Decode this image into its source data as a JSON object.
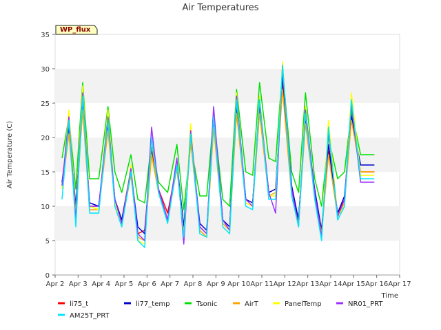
{
  "chart_data": {
    "type": "line",
    "title": "Air Temperatures",
    "xlabel": "Time",
    "ylabel": "Air Temperature (C)",
    "site_badge": "WP_flux",
    "x_ticks": [
      "Apr 2",
      "Apr 3",
      "Apr 4",
      "Apr 5",
      "Apr 6",
      "Apr 7",
      "Apr 8",
      "Apr 9",
      "Apr 10",
      "Apr 11",
      "Apr 12",
      "Apr 13",
      "Apr 14",
      "Apr 15",
      "Apr 16",
      "Apr 17"
    ],
    "xlim": [
      "Apr 2",
      "Apr 17"
    ],
    "ylim": [
      0,
      35
    ],
    "y_ticks": [
      "0",
      "5",
      "10",
      "15",
      "20",
      "25",
      "30",
      "35"
    ],
    "grid": "horizontal bands",
    "legend_position": "bottom",
    "x_unit": "day of April",
    "x": [
      2.3,
      2.6,
      2.9,
      3.2,
      3.5,
      3.9,
      4.3,
      4.6,
      4.9,
      5.3,
      5.6,
      5.9,
      6.2,
      6.5,
      6.9,
      7.3,
      7.6,
      7.9,
      8.3,
      8.6,
      8.9,
      9.3,
      9.6,
      9.9,
      10.3,
      10.6,
      10.9,
      11.3,
      11.6,
      11.9,
      12.3,
      12.6,
      12.9,
      13.3,
      13.6,
      13.9,
      14.3,
      14.6,
      14.9,
      15.3,
      15.6,
      15.9
    ],
    "series": [
      {
        "name": "li75_t",
        "color": "#ff0000",
        "values": [
          13.0,
          22.0,
          9.5,
          25.0,
          10.0,
          10.0,
          22.0,
          11.0,
          8.0,
          15.5,
          6.0,
          6.5,
          18.0,
          12.5,
          9.0,
          16.0,
          6.5,
          20.5,
          7.0,
          6.0,
          22.5,
          8.0,
          7.0,
          24.5,
          11.0,
          10.5,
          24.0,
          12.0,
          12.5,
          28.0,
          12.0,
          8.0,
          23.0,
          12.0,
          6.5,
          18.0,
          9.0,
          11.0,
          23.5,
          15.0,
          15.0,
          15.0
        ]
      },
      {
        "name": "li77_temp",
        "color": "#0000cd",
        "values": [
          13.5,
          21.5,
          10.0,
          25.5,
          10.5,
          10.0,
          22.0,
          11.0,
          8.0,
          15.0,
          7.0,
          6.0,
          19.0,
          12.5,
          8.0,
          16.5,
          7.0,
          20.0,
          7.5,
          6.5,
          22.0,
          8.0,
          7.0,
          25.0,
          11.0,
          10.5,
          25.0,
          12.0,
          12.5,
          29.0,
          13.0,
          8.0,
          23.0,
          12.5,
          6.5,
          19.0,
          9.0,
          11.5,
          23.0,
          16.0,
          16.0,
          16.0
        ]
      },
      {
        "name": "Tsonic",
        "color": "#00e000",
        "values": [
          17.0,
          23.0,
          12.5,
          28.0,
          14.0,
          14.0,
          24.5,
          15.0,
          12.0,
          17.5,
          11.0,
          10.5,
          19.5,
          13.5,
          12.0,
          19.0,
          9.5,
          19.0,
          11.5,
          11.5,
          23.0,
          11.0,
          10.0,
          27.0,
          15.0,
          14.5,
          28.0,
          17.0,
          16.5,
          30.0,
          15.0,
          12.0,
          26.5,
          14.0,
          10.0,
          20.0,
          14.0,
          15.0,
          24.0,
          17.5,
          17.5,
          17.5
        ]
      },
      {
        "name": "AirT",
        "color": "#ffa500",
        "values": [
          12.5,
          20.5,
          9.0,
          24.0,
          9.5,
          9.5,
          21.0,
          10.5,
          7.5,
          14.5,
          5.5,
          5.0,
          17.5,
          12.0,
          8.0,
          15.5,
          6.0,
          19.5,
          6.5,
          5.5,
          21.5,
          7.5,
          6.5,
          23.5,
          10.5,
          10.0,
          23.5,
          11.5,
          12.0,
          27.0,
          11.5,
          7.5,
          22.0,
          11.5,
          6.0,
          17.5,
          8.5,
          10.5,
          22.5,
          15.0,
          15.0,
          15.0
        ]
      },
      {
        "name": "PanelTemp",
        "color": "#ffff00",
        "values": [
          12.5,
          24.0,
          8.5,
          27.5,
          10.0,
          9.5,
          24.0,
          10.5,
          7.0,
          16.0,
          5.0,
          4.5,
          19.5,
          12.0,
          7.5,
          16.5,
          5.5,
          22.0,
          6.0,
          5.5,
          24.0,
          7.0,
          6.0,
          26.5,
          10.5,
          10.0,
          26.0,
          11.5,
          11.5,
          31.0,
          12.0,
          7.0,
          24.5,
          11.0,
          5.5,
          22.5,
          8.5,
          10.0,
          26.5,
          14.5,
          14.5,
          14.5
        ]
      },
      {
        "name": "NR01_PRT",
        "color": "#9b30ff",
        "values": [
          13.0,
          23.0,
          8.0,
          26.5,
          10.0,
          10.0,
          23.0,
          11.0,
          7.5,
          15.5,
          6.0,
          5.0,
          21.5,
          12.5,
          8.0,
          17.0,
          4.5,
          21.0,
          7.0,
          6.0,
          24.5,
          8.0,
          6.5,
          26.0,
          11.0,
          10.0,
          25.5,
          12.0,
          9.0,
          30.5,
          12.5,
          7.0,
          24.0,
          12.0,
          5.5,
          21.0,
          8.5,
          11.0,
          25.0,
          13.5,
          13.5,
          13.5
        ]
      },
      {
        "name": "AM25T_PRT",
        "color": "#00e5ff",
        "values": [
          11.0,
          22.5,
          7.0,
          26.0,
          9.0,
          9.0,
          22.5,
          10.0,
          7.0,
          15.0,
          5.0,
          4.0,
          20.0,
          12.0,
          7.5,
          16.0,
          5.5,
          20.5,
          6.0,
          5.5,
          23.0,
          7.0,
          6.0,
          25.5,
          10.0,
          9.5,
          25.5,
          11.0,
          11.0,
          30.5,
          11.5,
          7.0,
          23.5,
          11.0,
          5.0,
          21.5,
          8.0,
          10.0,
          25.5,
          14.0,
          14.0,
          14.0
        ]
      }
    ]
  }
}
